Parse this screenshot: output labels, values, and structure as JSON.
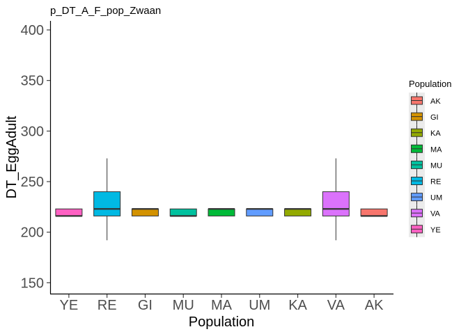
{
  "chart_data": {
    "type": "boxplot",
    "title": "p_DT_A_F_pop_Zwaan",
    "xlabel": "Population",
    "ylabel": "DT_EggAdult",
    "ylim": [
      140,
      405
    ],
    "yticks": [
      150,
      200,
      250,
      300,
      350,
      400
    ],
    "grid": false,
    "legend": {
      "title": "Population",
      "placement": "right",
      "entries": [
        "AK",
        "GI",
        "KA",
        "MA",
        "MU",
        "RE",
        "UM",
        "VA",
        "YE"
      ]
    },
    "categories": [
      "YE",
      "RE",
      "GI",
      "MU",
      "MA",
      "UM",
      "KA",
      "VA",
      "AK"
    ],
    "colors": {
      "AK": "#F8766D",
      "GI": "#D39200",
      "KA": "#93AA00",
      "MA": "#00BA38",
      "MU": "#00C19F",
      "RE": "#00B9E3",
      "UM": "#619CFF",
      "VA": "#DB72FB",
      "YE": "#FF61C3"
    },
    "boxes": [
      {
        "category": "YE",
        "min": 216,
        "q1": 216,
        "median": 216,
        "q3": 223,
        "max": 223
      },
      {
        "category": "RE",
        "min": 192,
        "q1": 216,
        "median": 223,
        "q3": 240,
        "max": 273
      },
      {
        "category": "GI",
        "min": 216,
        "q1": 216,
        "median": 223,
        "q3": 223,
        "max": 223
      },
      {
        "category": "MU",
        "min": 216,
        "q1": 216,
        "median": 216,
        "q3": 223,
        "max": 223
      },
      {
        "category": "MA",
        "min": 216,
        "q1": 216,
        "median": 223,
        "q3": 223,
        "max": 223
      },
      {
        "category": "UM",
        "min": 216,
        "q1": 216,
        "median": 223,
        "q3": 223,
        "max": 223
      },
      {
        "category": "KA",
        "min": 216,
        "q1": 216,
        "median": 223,
        "q3": 223,
        "max": 223
      },
      {
        "category": "VA",
        "min": 192,
        "q1": 216,
        "median": 223,
        "q3": 240,
        "max": 273
      },
      {
        "category": "AK",
        "min": 216,
        "q1": 216,
        "median": 216,
        "q3": 223,
        "max": 223
      }
    ]
  }
}
